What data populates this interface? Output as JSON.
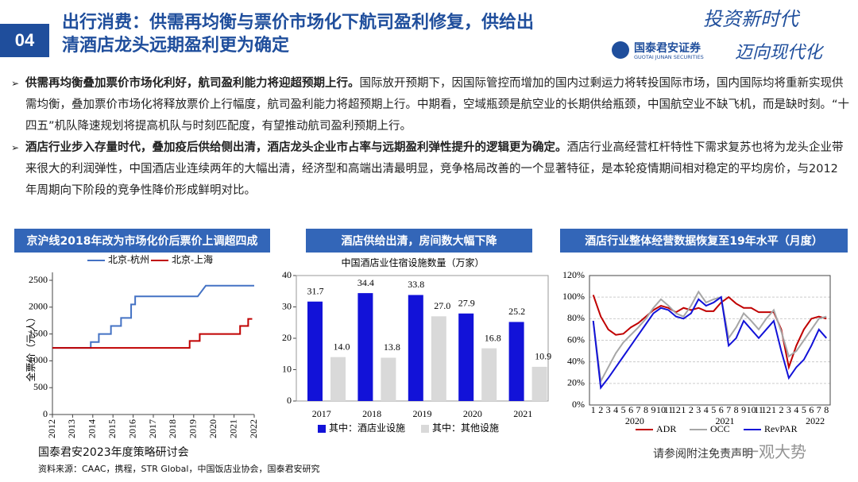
{
  "header": {
    "number": "04",
    "title_lines": [
      "出行消费：供需再均衡与票价市场化下航司盈利修复，供给出",
      "清酒店龙头远期盈利更为确定"
    ]
  },
  "logo": {
    "slogan_1": "投资新时代",
    "slogan_2": "迈向现代化",
    "company": "国泰君安证券",
    "company_en": "GUOTAI JUNAN SECURITIES"
  },
  "bullets": [
    {
      "bold": "供需再均衡叠加票价市场化利好，航司盈利能力将迎超预期上行。",
      "text": "国际放开预期下，因国际管控而增加的国内过剩运力将转投国际市场，国内国际均将重新实现供需均衡，叠加票价市场化将释放票价上行幅度，航司盈利能力将超预期上行。中期看，空域瓶颈是航空业的长期供给瓶颈，中国航空业不缺飞机，而是缺时刻。“十四五”机队降速规划将提高机队与时刻匹配度，有望推动航司盈利预期上行。"
    },
    {
      "bold": "酒店行业步入存量时代，叠加疫后供给侧出清，酒店龙头企业市占率与远期盈利弹性提升的逻辑更为确定。",
      "text": "酒店行业高经营杠杆特性下需求复苏也将为龙头企业带来很大的利润弹性，中国酒店业连续两年的大幅出清，经济型和高端出清最明显，竞争格局改善的一个显著特征，是本轮疫情期间相对稳定的平均房价，与2012年周期向下阶段的竞争性降价形成鲜明对比。"
    }
  ],
  "chart_data": [
    {
      "type": "line",
      "panel_title": "京沪线2018年改为市场化价后票价上调超四成",
      "ylabel": "全票价（元/人）",
      "xlim": [
        2012,
        2022
      ],
      "xticks": [
        2012,
        2013,
        2014,
        2015,
        2016,
        2017,
        2018,
        2019,
        2020,
        2021,
        2022
      ],
      "ylim": [
        0,
        2500
      ],
      "yticks": [
        0,
        500,
        1000,
        1500,
        2000,
        2500
      ],
      "grid": false,
      "legend": "top",
      "series": [
        {
          "name": "北京-杭州",
          "color": "#4472c4",
          "x": [
            2012,
            2013.9,
            2013.9,
            2014.3,
            2014.3,
            2014.9,
            2014.9,
            2015.4,
            2015.4,
            2015.9,
            2015.9,
            2016.1,
            2016.1,
            2019.2,
            2019.6,
            2022
          ],
          "values": [
            1240,
            1240,
            1350,
            1350,
            1500,
            1500,
            1650,
            1650,
            1800,
            1800,
            2050,
            2050,
            2200,
            2200,
            2400,
            2400
          ]
        },
        {
          "name": "北京-上海",
          "color": "#c00000",
          "x": [
            2012,
            2018.8,
            2018.8,
            2019.3,
            2019.3,
            2021.3,
            2021.3,
            2021.7,
            2021.7,
            2021.9
          ],
          "values": [
            1240,
            1240,
            1370,
            1370,
            1500,
            1500,
            1650,
            1650,
            1780,
            1780
          ]
        }
      ]
    },
    {
      "type": "bar",
      "panel_title": "酒店供给出清，房间数大幅下降",
      "title": "中国酒店业住宿设施数量（万家）",
      "categories": [
        "2017",
        "2018",
        "2019",
        "2020",
        "2021"
      ],
      "ylim": [
        0,
        40
      ],
      "yticks": [
        0,
        10,
        20,
        30,
        40
      ],
      "grid": false,
      "legend": "bottom",
      "series": [
        {
          "name": "其中：酒店业设施",
          "color": "#1212d8",
          "values": [
            31.7,
            34.4,
            33.8,
            27.9,
            25.2
          ],
          "value_labels": [
            "31.7",
            "34.4",
            "33.8",
            "27.9",
            "25.2"
          ]
        },
        {
          "name": "其中：其他设施",
          "color": "#d9d9d9",
          "values": [
            14.0,
            13.8,
            27.0,
            16.8,
            10.9
          ],
          "value_labels": [
            "14.0",
            "13.8",
            "27.0",
            "16.8",
            "10.9"
          ]
        }
      ]
    },
    {
      "type": "line",
      "panel_title": "酒店行业整体经营数据恢复至19年水平（月度）",
      "categories": [
        "1",
        "2",
        "3",
        "4",
        "5",
        "6",
        "7",
        "8",
        "9",
        "10",
        "11",
        "12",
        "1",
        "2",
        "3",
        "4",
        "5",
        "6",
        "7",
        "8",
        "9",
        "10",
        "11",
        "12",
        "1",
        "2",
        "3",
        "4",
        "5",
        "6",
        "7",
        "8"
      ],
      "years": [
        "2020",
        "2021",
        "2022"
      ],
      "ylim": [
        0,
        120
      ],
      "yticks": [
        {
          "value": 0,
          "label": "0%"
        },
        {
          "value": 20,
          "label": "20%"
        },
        {
          "value": 40,
          "label": "40%"
        },
        {
          "value": 60,
          "label": "60%"
        },
        {
          "value": 80,
          "label": "80%"
        },
        {
          "value": 100,
          "label": "100%"
        },
        {
          "value": 120,
          "label": "120%"
        }
      ],
      "grid": true,
      "legend": "bottom",
      "series": [
        {
          "name": "ADR",
          "color": "#c00000",
          "values": [
            102,
            82,
            70,
            65,
            66,
            72,
            76,
            82,
            88,
            92,
            90,
            86,
            90,
            88,
            90,
            87,
            87,
            95,
            100,
            94,
            90,
            90,
            86,
            86,
            86,
            70,
            35,
            55,
            70,
            80,
            82,
            80
          ]
        },
        {
          "name": "OCC",
          "color": "#a6a6a6",
          "values": [
            78,
            22,
            35,
            48,
            58,
            65,
            72,
            80,
            90,
            98,
            92,
            85,
            82,
            92,
            105,
            95,
            98,
            100,
            62,
            72,
            85,
            78,
            70,
            80,
            88,
            68,
            45,
            50,
            60,
            70,
            80,
            82
          ]
        },
        {
          "name": "RevPAR",
          "color": "#1212d8",
          "values": [
            78,
            16,
            25,
            35,
            45,
            55,
            65,
            75,
            85,
            90,
            88,
            82,
            80,
            85,
            98,
            92,
            95,
            100,
            55,
            62,
            78,
            70,
            62,
            70,
            78,
            50,
            25,
            35,
            42,
            55,
            70,
            62
          ]
        }
      ]
    }
  ],
  "footer": {
    "event": "国泰君安2023年度策略研讨会",
    "source": "资料来源：CAAC，携程，STR Global，中国饭店业协会，国泰君安研究",
    "disclaimer": "请参阅附注免责声明",
    "watermark": "一观大势"
  }
}
